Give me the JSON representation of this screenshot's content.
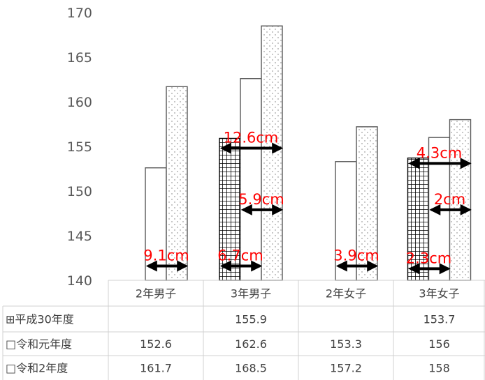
{
  "chart_data": {
    "type": "bar",
    "categories": [
      "2年男子",
      "3年男子",
      "2年女子",
      "3年女子"
    ],
    "series": [
      {
        "name": "平成30年度",
        "marker": "⊞",
        "pattern": "grid",
        "values": [
          null,
          155.9,
          null,
          153.7
        ]
      },
      {
        "name": "令和元年度",
        "marker": "□",
        "pattern": "plain",
        "values": [
          152.6,
          162.6,
          153.3,
          156
        ]
      },
      {
        "name": "令和2年度",
        "marker": "□",
        "pattern": "dots",
        "values": [
          161.7,
          168.5,
          157.2,
          158
        ]
      }
    ],
    "table_text": [
      [
        "",
        "155.9",
        "",
        "153.7"
      ],
      [
        "152.6",
        "162.6",
        "153.3",
        "156"
      ],
      [
        "161.7",
        "168.5",
        "157.2",
        "158"
      ]
    ],
    "ylim": [
      140,
      170
    ],
    "yticks": [
      140,
      145,
      150,
      155,
      160,
      165,
      170
    ],
    "legend": "data-table",
    "annotations": [
      {
        "text": "9.1cm",
        "category": 0,
        "y": 141.6,
        "from": 1,
        "to": 2
      },
      {
        "text": "12.6cm",
        "category": 1,
        "y": 154.8,
        "from": 0,
        "to": 2
      },
      {
        "text": "5.9cm",
        "category": 1,
        "y": 147.9,
        "from": 1,
        "to": 2
      },
      {
        "text": "6.7cm",
        "category": 1,
        "y": 141.6,
        "from": 0,
        "to": 1
      },
      {
        "text": "3.9cm",
        "category": 2,
        "y": 141.6,
        "from": 1,
        "to": 2
      },
      {
        "text": "4.3cm",
        "category": 3,
        "y": 153.1,
        "from": 0,
        "to": 2
      },
      {
        "text": "2cm",
        "category": 3,
        "y": 147.9,
        "from": 1,
        "to": 2
      },
      {
        "text": "2.3cm",
        "category": 3,
        "y": 141.3,
        "from": 0,
        "to": 1
      }
    ],
    "colors": {
      "bar_stroke": "#595959",
      "annotation": "#ff0000",
      "arrow": "#000000",
      "tick": "#595959"
    }
  }
}
